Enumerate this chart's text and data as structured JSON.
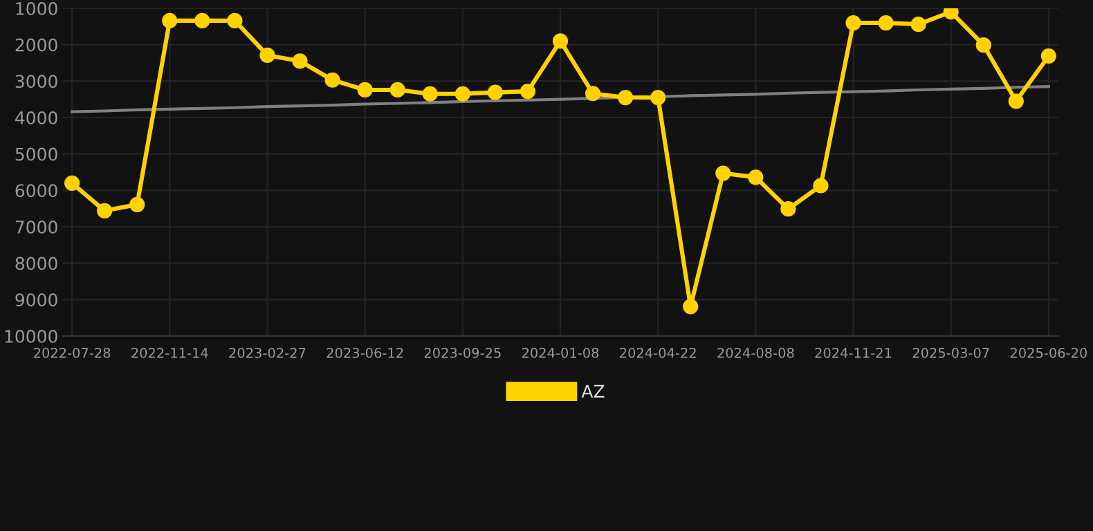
{
  "chart_data": {
    "type": "line",
    "categories": [
      "2022-07-28",
      null,
      null,
      "2022-11-14",
      null,
      null,
      "2023-02-27",
      null,
      null,
      "2023-06-12",
      null,
      null,
      "2023-09-25",
      null,
      null,
      "2024-01-08",
      null,
      null,
      "2024-04-22",
      null,
      null,
      "2024-08-08",
      null,
      null,
      "2024-11-21",
      null,
      null,
      "2025-03-07",
      null,
      null,
      "2025-06-20"
    ],
    "series": [
      {
        "name": "AZ",
        "color": "#ffd200",
        "marker": "circle",
        "values": [
          5800,
          6560,
          6390,
          1340,
          1340,
          1340,
          2290,
          2450,
          2970,
          3240,
          3240,
          3350,
          3350,
          3310,
          3280,
          1900,
          3340,
          3450,
          3450,
          9190,
          5530,
          5640,
          6510,
          5870,
          1400,
          1400,
          1440,
          1100,
          2010,
          3550,
          2310
        ]
      },
      {
        "type": "line",
        "color": "#808080",
        "marker": "none",
        "values": [
          3840,
          3820,
          3790,
          3770,
          3750,
          3730,
          3700,
          3680,
          3660,
          3630,
          3610,
          3590,
          3560,
          3540,
          3520,
          3500,
          3470,
          3450,
          3430,
          3400,
          3380,
          3360,
          3330,
          3310,
          3290,
          3270,
          3240,
          3220,
          3200,
          3170,
          3150
        ]
      }
    ],
    "ylim": [
      10000,
      1000
    ],
    "yticks": [
      1000,
      2000,
      3000,
      4000,
      5000,
      6000,
      7000,
      8000,
      9000,
      10000
    ],
    "grid": true,
    "legend": "bottom"
  }
}
